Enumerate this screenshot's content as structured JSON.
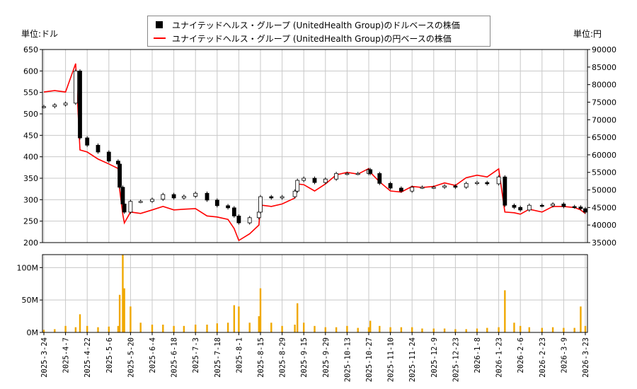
{
  "units": {
    "left": "単位:ドル",
    "right": "単位:円"
  },
  "legend": [
    {
      "label": "ユナイテッドヘルス・グループ (UnitedHealth Group)のドルベースの株価",
      "color": "#000000",
      "marker": "candlestick"
    },
    {
      "label": "ユナイテッドヘルス・グループ (UnitedHealth Group)の円ベースの株価",
      "color": "#ff0000",
      "marker": "line"
    }
  ],
  "chart_data": {
    "type": "line",
    "left_axis": {
      "ylim": [
        200,
        650
      ],
      "ticks": [
        "650",
        "600",
        "550",
        "500",
        "450",
        "400",
        "350",
        "300",
        "250",
        "200"
      ]
    },
    "right_axis": {
      "ylim": [
        35000,
        90000
      ],
      "ticks": [
        "90000",
        "85000",
        "80000",
        "75000",
        "70000",
        "65000",
        "60000",
        "55000",
        "50000",
        "45000",
        "40000",
        "35000"
      ]
    },
    "volume_axis": {
      "ylim": [
        0,
        120
      ],
      "ticks": [
        "100M",
        "50M",
        "0M"
      ]
    },
    "x_ticks": [
      "2025-3-24",
      "2025-4-7",
      "2025-4-22",
      "2025-5-6",
      "2025-5-20",
      "2025-6-4",
      "2025-6-18",
      "2025-7-3",
      "2025-7-18",
      "2025-8-1",
      "2025-8-15",
      "2025-8-29",
      "2025-9-15",
      "2025-9-29",
      "2025-10-13",
      "2025-10-27",
      "2025-11-10",
      "2025-11-24",
      "2025-12-9",
      "2025-12-23",
      "2026-1-8",
      "2026-1-23",
      "2026-2-6",
      "2026-2-23",
      "2026-3-9",
      "2026-3-23"
    ],
    "grid": true,
    "colors": {
      "usd": "#000000",
      "jpy": "#ff0000",
      "volume": "#f0a800",
      "grid": "#c8c8c8"
    },
    "dates": [
      "2025-03-24",
      "2025-03-31",
      "2025-04-07",
      "2025-04-14",
      "2025-04-17",
      "2025-04-22",
      "2025-04-29",
      "2025-05-06",
      "2025-05-12",
      "2025-05-13",
      "2025-05-15",
      "2025-05-16",
      "2025-05-20",
      "2025-05-27",
      "2025-06-04",
      "2025-06-11",
      "2025-06-18",
      "2025-06-25",
      "2025-07-03",
      "2025-07-11",
      "2025-07-18",
      "2025-07-25",
      "2025-07-29",
      "2025-08-01",
      "2025-08-08",
      "2025-08-14",
      "2025-08-15",
      "2025-08-22",
      "2025-08-29",
      "2025-09-08",
      "2025-09-10",
      "2025-09-15",
      "2025-09-22",
      "2025-09-29",
      "2025-10-06",
      "2025-10-13",
      "2025-10-20",
      "2025-10-27",
      "2025-10-28",
      "2025-11-03",
      "2025-11-10",
      "2025-11-17",
      "2025-11-24",
      "2025-12-01",
      "2025-12-09",
      "2025-12-16",
      "2025-12-23",
      "2025-12-31",
      "2026-01-08",
      "2026-01-15",
      "2026-01-23",
      "2026-01-27",
      "2026-02-02",
      "2026-02-06",
      "2026-02-13",
      "2026-02-23",
      "2026-03-02",
      "2026-03-09",
      "2026-03-16",
      "2026-03-20",
      "2026-03-23"
    ],
    "usd_close": [
      517,
      521,
      525,
      600,
      444,
      427,
      411,
      390,
      383,
      329,
      290,
      271,
      296,
      296,
      301,
      312,
      304,
      308,
      315,
      299,
      286,
      281,
      262,
      246,
      258,
      271,
      307,
      304,
      307,
      320,
      345,
      350,
      340,
      348,
      361,
      361,
      361,
      370,
      361,
      338,
      327,
      320,
      329,
      329,
      329,
      332,
      329,
      338,
      340,
      337,
      353,
      287,
      282,
      276,
      287,
      286,
      290,
      284,
      283,
      279,
      271
    ],
    "jpy_close": [
      77900,
      78300,
      77900,
      86000,
      61400,
      60800,
      58800,
      57400,
      56100,
      50000,
      43000,
      40600,
      43700,
      43300,
      44300,
      45300,
      44300,
      44500,
      44700,
      42600,
      42300,
      41600,
      39000,
      35600,
      37500,
      40000,
      45700,
      45300,
      46000,
      47700,
      51700,
      51500,
      49700,
      51700,
      54300,
      55000,
      54500,
      56100,
      55000,
      52300,
      49700,
      49400,
      51000,
      50700,
      51000,
      52000,
      51300,
      53500,
      54200,
      53700,
      56000,
      43700,
      43500,
      43100,
      44500,
      43700,
      45300,
      45300,
      45000,
      44300,
      43300
    ],
    "volume_millions": [
      4,
      5,
      10,
      8,
      28,
      10,
      8,
      9,
      10,
      58,
      120,
      68,
      40,
      15,
      12,
      12,
      10,
      10,
      12,
      12,
      14,
      15,
      42,
      40,
      15,
      25,
      68,
      15,
      10,
      12,
      45,
      15,
      10,
      8,
      8,
      10,
      7,
      8,
      18,
      10,
      8,
      8,
      8,
      6,
      6,
      6,
      5,
      5,
      6,
      7,
      8,
      65,
      15,
      10,
      8,
      7,
      8,
      7,
      7,
      40,
      10
    ]
  }
}
